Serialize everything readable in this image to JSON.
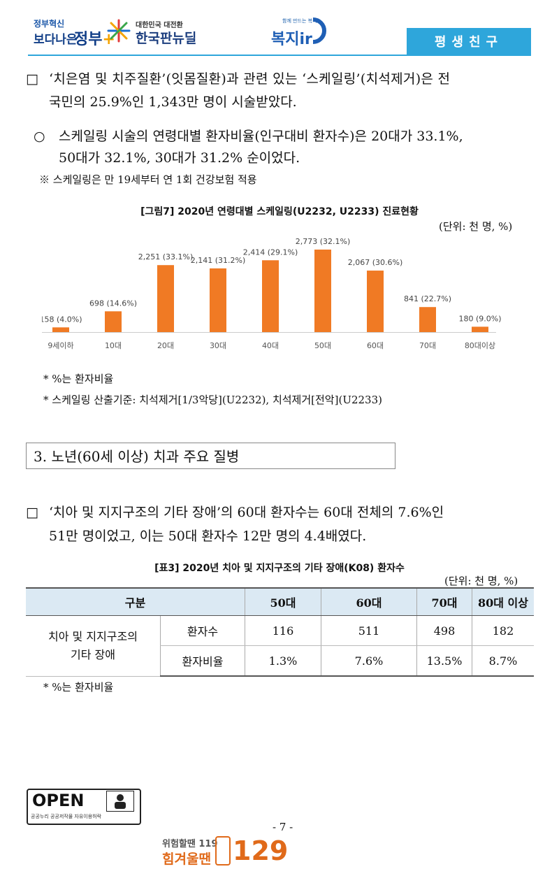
{
  "header": {
    "gov_small": "정부혁신",
    "gov_main": "보다나은",
    "gov_word": "정부",
    "gov_plus": "+",
    "newdeal_sub": "대한민국 대전환",
    "newdeal": "한국판뉴딜",
    "welfare_sub": "함께 만드는 복지",
    "welfare": "복지ir",
    "banner": "평생친구"
  },
  "section1": {
    "bullet1_mark": "□",
    "bullet1_line1": "‘치은염 및 치주질환’(잇몸질환)과 관련 있는 ‘스케일링’(치석제거)은 전",
    "bullet1_line2": "국민의 25.9%인 1,343만 명이 시술받았다.",
    "bullet2_mark": "○",
    "bullet2_line1": "스케일링 시술의 연령대별 환자비율(인구대비 환자수)은 20대가 33.1%,",
    "bullet2_line2": "50대가 32.1%, 30대가 31.2% 순이었다.",
    "note": "※ 스케일링은 만 19세부터 연 1회 건강보험 적용"
  },
  "chart_data": {
    "type": "bar",
    "title": "[그림7] 2020년 연령대별 스케일링(U2232, U2233) 진료현황",
    "unit": "(단위: 천 명, %)",
    "categories": [
      "9세이하",
      "10대",
      "20대",
      "30대",
      "40대",
      "50대",
      "60대",
      "70대",
      "80대이상"
    ],
    "values": [
      158,
      698,
      2251,
      2141,
      2414,
      2773,
      2067,
      841,
      180
    ],
    "labels": [
      "158 (4.0%)",
      "698 (14.6%)",
      "2,251 (33.1%)",
      "2,141 (31.2%)",
      "2,414 (29.1%)",
      "2,773 (32.1%)",
      "2,067 (30.6%)",
      "841 (22.7%)",
      "180 (9.0%)"
    ],
    "ylim": [
      0,
      2773
    ],
    "color": "#f07a24"
  },
  "chart_notes": {
    "n1": "* %는 환자비율",
    "n2": "* 스케일링 산출기준: 치석제거[1/3악당](U2232), 치석제거[전악](U2233)"
  },
  "section3": {
    "title": "3. 노년(60세 이상) 치과 주요 질병",
    "bullet_mark": "□",
    "line1": "‘치아 및 지지구조의 기타 장애’의 60대 환자수는 60대 전체의 7.6%인",
    "line2": "51만 명이었고, 이는 50대 환자수 12만 명의 4.4배였다."
  },
  "table": {
    "title": "[표3] 2020년 치아 및 지지구조의 기타 장애(K08) 환자수",
    "unit": "(단위: 천 명, %)",
    "header": [
      "구분",
      "50대",
      "60대",
      "70대",
      "80대 이상"
    ],
    "row_group_line1": "치아 및 지지구조의",
    "row_group_line2": "기타 장애",
    "rows": [
      {
        "label": "환자수",
        "values": [
          "116",
          "511",
          "498",
          "182"
        ]
      },
      {
        "label": "환자비율",
        "values": [
          "1.3%",
          "7.6%",
          "13.5%",
          "8.7%"
        ]
      }
    ],
    "note": "* %는 환자비율"
  },
  "footer": {
    "open": "OPEN",
    "open_sub": "공공누리  공공저작물 자유이용허락",
    "open_box": "출처표시",
    "page": "- 7 -",
    "hotline_top": "위험할땐 119",
    "hotline_bottom": "힘겨울땐",
    "hotline_num": "129"
  }
}
